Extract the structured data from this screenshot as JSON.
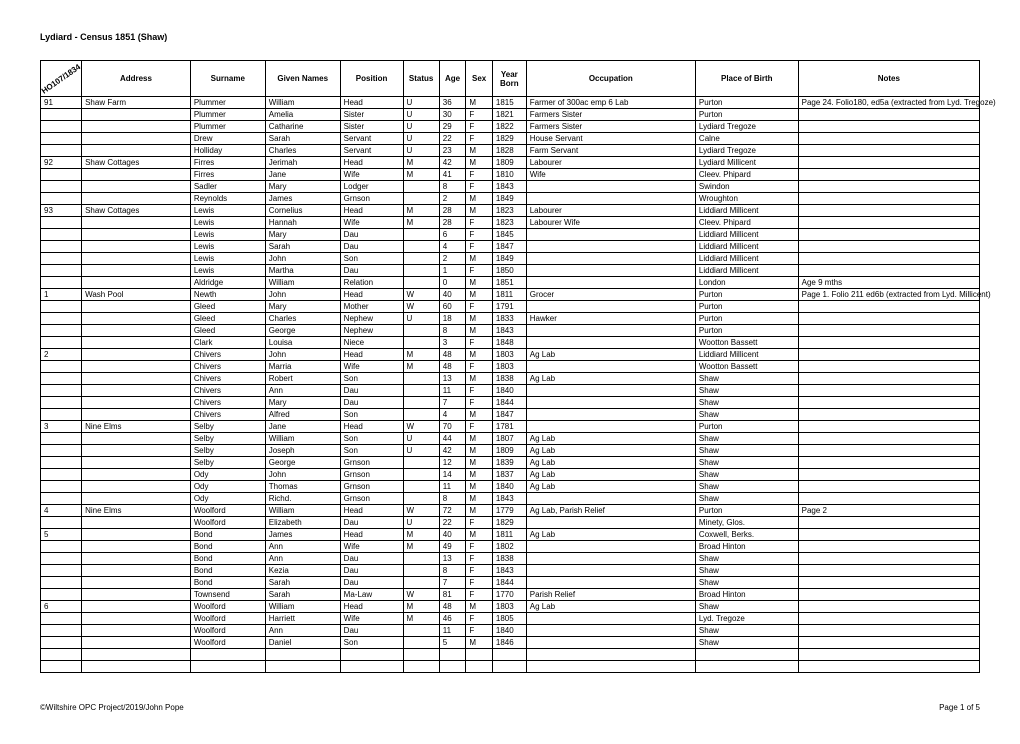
{
  "title": "Lydiard - Census 1851 (Shaw)",
  "ref": "HO107/1834",
  "footerLeft": "©Wiltshire OPC Project/2019/John Pope",
  "footerRight": "Page 1 of 5",
  "headers": [
    "",
    "Address",
    "Surname",
    "Given Names",
    "Position",
    "Status",
    "Age",
    "Sex",
    "Year Born",
    "Occupation",
    "Place of Birth",
    "Notes"
  ],
  "rows": [
    [
      "91",
      "Shaw Farm",
      "Plummer",
      "William",
      "Head",
      "U",
      "36",
      "M",
      "1815",
      "Farmer of 300ac emp 6 Lab",
      "Purton",
      "Page 24. Folio180, ed5a (extracted from Lyd. Tregoze)"
    ],
    [
      "",
      "",
      "Plummer",
      "Amelia",
      "Sister",
      "U",
      "30",
      "F",
      "1821",
      "Farmers Sister",
      "Purton",
      ""
    ],
    [
      "",
      "",
      "Plummer",
      "Catharine",
      "Sister",
      "U",
      "29",
      "F",
      "1822",
      "Farmers Sister",
      "Lydiard Tregoze",
      ""
    ],
    [
      "",
      "",
      "Drew",
      "Sarah",
      "Servant",
      "U",
      "22",
      "F",
      "1829",
      "House Servant",
      "Calne",
      ""
    ],
    [
      "",
      "",
      "Holliday",
      "Charles",
      "Servant",
      "U",
      "23",
      "M",
      "1828",
      "Farm Servant",
      "Lydiard Tregoze",
      ""
    ],
    [
      "92",
      "Shaw Cottages",
      "Firres",
      "Jerimah",
      "Head",
      "M",
      "42",
      "M",
      "1809",
      "Labourer",
      "Lydiard Millicent",
      ""
    ],
    [
      "",
      "",
      "Firres",
      "Jane",
      "Wife",
      "M",
      "41",
      "F",
      "1810",
      "Wife",
      "Cleev. Phipard",
      ""
    ],
    [
      "",
      "",
      "Sadler",
      "Mary",
      "Lodger",
      "",
      "8",
      "F",
      "1843",
      "",
      "Swindon",
      ""
    ],
    [
      "",
      "",
      "Reynolds",
      "James",
      "Grnson",
      "",
      "2",
      "M",
      "1849",
      "",
      "Wroughton",
      ""
    ],
    [
      "93",
      "Shaw Cottages",
      "Lewis",
      "Cornelius",
      "Head",
      "M",
      "28",
      "M",
      "1823",
      "Labourer",
      "Liddiard Millicent",
      ""
    ],
    [
      "",
      "",
      "Lewis",
      "Hannah",
      "Wife",
      "M",
      "28",
      "F",
      "1823",
      "Labourer Wife",
      "Cleev. Phipard",
      ""
    ],
    [
      "",
      "",
      "Lewis",
      "Mary",
      "Dau",
      "",
      "6",
      "F",
      "1845",
      "",
      "Liddiard Millicent",
      ""
    ],
    [
      "",
      "",
      "Lewis",
      "Sarah",
      "Dau",
      "",
      "4",
      "F",
      "1847",
      "",
      "Liddiard Millicent",
      ""
    ],
    [
      "",
      "",
      "Lewis",
      "John",
      "Son",
      "",
      "2",
      "M",
      "1849",
      "",
      "Liddiard Millicent",
      ""
    ],
    [
      "",
      "",
      "Lewis",
      "Martha",
      "Dau",
      "",
      "1",
      "F",
      "1850",
      "",
      "Liddiard Millicent",
      ""
    ],
    [
      "",
      "",
      "Aldridge",
      "William",
      "Relation",
      "",
      "0",
      "M",
      "1851",
      "",
      "London",
      "Age 9 mths"
    ],
    [
      "1",
      "Wash Pool",
      "Newth",
      "John",
      "Head",
      "W",
      "40",
      "M",
      "1811",
      "Grocer",
      "Purton",
      "Page 1. Folio 211 ed6b (extracted from Lyd. Millicent)"
    ],
    [
      "",
      "",
      "Gleed",
      "Mary",
      "Mother",
      "W",
      "60",
      "F",
      "1791",
      "",
      "Purton",
      ""
    ],
    [
      "",
      "",
      "Gleed",
      "Charles",
      "Nephew",
      "U",
      "18",
      "M",
      "1833",
      "Hawker",
      "Purton",
      ""
    ],
    [
      "",
      "",
      "Gleed",
      "George",
      "Nephew",
      "",
      "8",
      "M",
      "1843",
      "",
      "Purton",
      ""
    ],
    [
      "",
      "",
      "Clark",
      "Louisa",
      "Niece",
      "",
      "3",
      "F",
      "1848",
      "",
      "Wootton Bassett",
      ""
    ],
    [
      "2",
      "",
      "Chivers",
      "John",
      "Head",
      "M",
      "48",
      "M",
      "1803",
      "Ag Lab",
      "Liddiard Millicent",
      ""
    ],
    [
      "",
      "",
      "Chivers",
      "Marria",
      "Wife",
      "M",
      "48",
      "F",
      "1803",
      "",
      "Wootton Bassett",
      ""
    ],
    [
      "",
      "",
      "Chivers",
      "Robert",
      "Son",
      "",
      "13",
      "M",
      "1838",
      "Ag Lab",
      "Shaw",
      ""
    ],
    [
      "",
      "",
      "Chivers",
      "Ann",
      "Dau",
      "",
      "11",
      "F",
      "1840",
      "",
      "Shaw",
      ""
    ],
    [
      "",
      "",
      "Chivers",
      "Mary",
      "Dau",
      "",
      "7",
      "F",
      "1844",
      "",
      "Shaw",
      ""
    ],
    [
      "",
      "",
      "Chivers",
      "Alfred",
      "Son",
      "",
      "4",
      "M",
      "1847",
      "",
      "Shaw",
      ""
    ],
    [
      "3",
      "Nine Elms",
      "Selby",
      "Jane",
      "Head",
      "W",
      "70",
      "F",
      "1781",
      "",
      "Purton",
      ""
    ],
    [
      "",
      "",
      "Selby",
      "William",
      "Son",
      "U",
      "44",
      "M",
      "1807",
      "Ag Lab",
      "Shaw",
      ""
    ],
    [
      "",
      "",
      "Selby",
      "Joseph",
      "Son",
      "U",
      "42",
      "M",
      "1809",
      "Ag Lab",
      "Shaw",
      ""
    ],
    [
      "",
      "",
      "Selby",
      "George",
      "Grnson",
      "",
      "12",
      "M",
      "1839",
      "Ag Lab",
      "Shaw",
      ""
    ],
    [
      "",
      "",
      "Ody",
      "John",
      "Grnson",
      "",
      "14",
      "M",
      "1837",
      "Ag Lab",
      "Shaw",
      ""
    ],
    [
      "",
      "",
      "Ody",
      "Thomas",
      "Grnson",
      "",
      "11",
      "M",
      "1840",
      "Ag Lab",
      "Shaw",
      ""
    ],
    [
      "",
      "",
      "Ody",
      "Richd.",
      "Grnson",
      "",
      "8",
      "M",
      "1843",
      "",
      "Shaw",
      ""
    ],
    [
      "4",
      "Nine Elms",
      "Woolford",
      "William",
      "Head",
      "W",
      "72",
      "M",
      "1779",
      "Ag Lab, Parish Relief",
      "Purton",
      "Page 2"
    ],
    [
      "",
      "",
      "Woolford",
      "Elizabeth",
      "Dau",
      "U",
      "22",
      "F",
      "1829",
      "",
      "Minety, Glos.",
      ""
    ],
    [
      "5",
      "",
      "Bond",
      "James",
      "Head",
      "M",
      "40",
      "M",
      "1811",
      "Ag Lab",
      "Coxwell, Berks.",
      ""
    ],
    [
      "",
      "",
      "Bond",
      "Ann",
      "Wife",
      "M",
      "49",
      "F",
      "1802",
      "",
      "Broad Hinton",
      ""
    ],
    [
      "",
      "",
      "Bond",
      "Ann",
      "Dau",
      "",
      "13",
      "F",
      "1838",
      "",
      "Shaw",
      ""
    ],
    [
      "",
      "",
      "Bond",
      "Kezia",
      "Dau",
      "",
      "8",
      "F",
      "1843",
      "",
      "Shaw",
      ""
    ],
    [
      "",
      "",
      "Bond",
      "Sarah",
      "Dau",
      "",
      "7",
      "F",
      "1844",
      "",
      "Shaw",
      ""
    ],
    [
      "",
      "",
      "Townsend",
      "Sarah",
      "Ma-Law",
      "W",
      "81",
      "F",
      "1770",
      "Parish Relief",
      "Broad Hinton",
      ""
    ],
    [
      "6",
      "",
      "Woolford",
      "William",
      "Head",
      "M",
      "48",
      "M",
      "1803",
      "Ag Lab",
      "Shaw",
      ""
    ],
    [
      "",
      "",
      "Woolford",
      "Harriett",
      "Wife",
      "M",
      "46",
      "F",
      "1805",
      "",
      "Lyd. Tregoze",
      ""
    ],
    [
      "",
      "",
      "Woolford",
      "Ann",
      "Dau",
      "",
      "11",
      "F",
      "1840",
      "",
      "Shaw",
      ""
    ],
    [
      "",
      "",
      "Woolford",
      "Daniel",
      "Son",
      "",
      "5",
      "M",
      "1846",
      "",
      "Shaw",
      ""
    ]
  ],
  "blankRows": 2
}
